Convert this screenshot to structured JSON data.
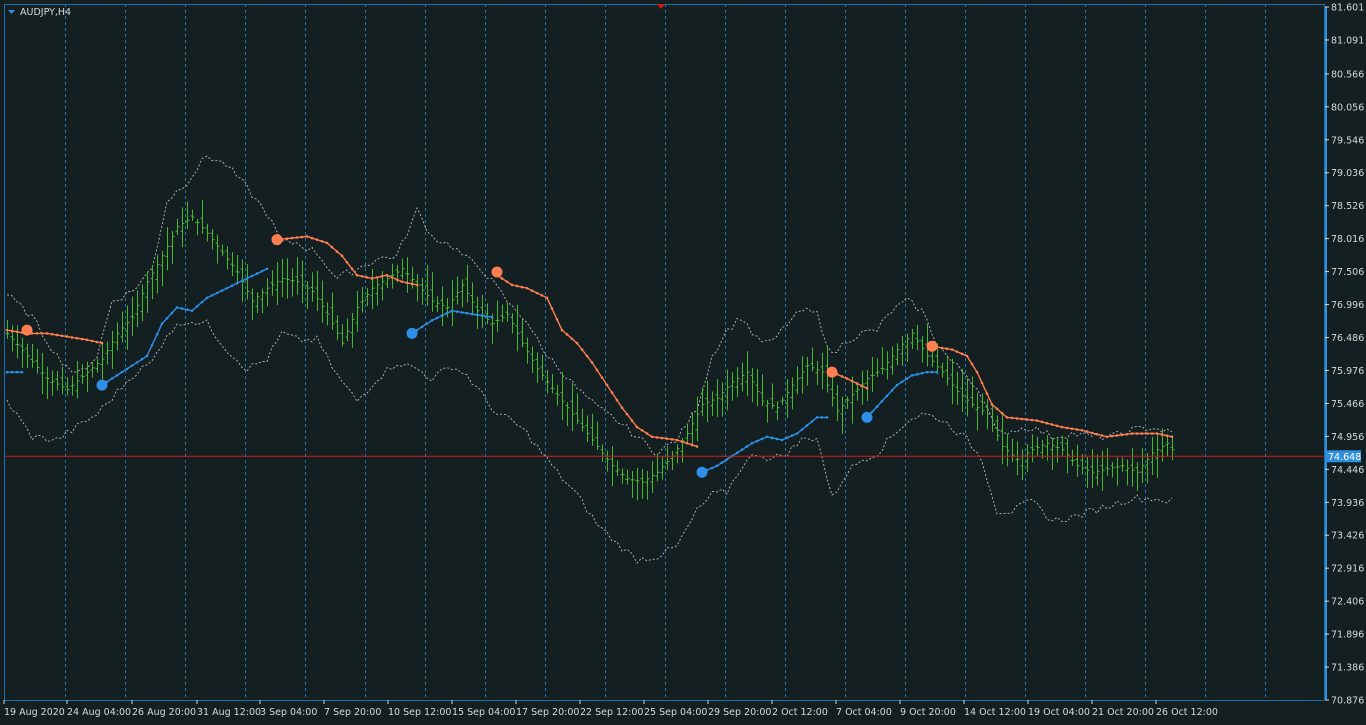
{
  "window": {
    "title": "AUDJPY,H4",
    "colors": {
      "background": "#131f20",
      "frame": "#1e6fae",
      "grid": "#2e8fdc",
      "bars": "#45b82c",
      "upper_band": "#ff7d4f",
      "lower_band": "#2e8fe8",
      "envelope": "#d8d8d8",
      "current_price_line": "#d81818",
      "price_tag": "#2e8fdc"
    }
  },
  "chart_data": {
    "type": "ohlc",
    "symbol": "AUDJPY",
    "timeframe": "H4",
    "y_axis": {
      "ticks": [
        "81.601",
        "81.091",
        "80.566",
        "80.056",
        "79.546",
        "79.036",
        "78.526",
        "78.016",
        "77.506",
        "76.996",
        "76.486",
        "75.976",
        "75.466",
        "74.956",
        "74.446",
        "73.936",
        "73.426",
        "72.916",
        "72.406",
        "71.896",
        "71.386",
        "70.876"
      ],
      "range": [
        70.876,
        81.601
      ]
    },
    "x_axis": {
      "labels": [
        "19 Aug 2020",
        "24 Aug 04:00",
        "26 Aug 20:00",
        "31 Aug 12:00",
        "3 Sep 04:00",
        "7 Sep 20:00",
        "10 Sep 12:00",
        "15 Sep 04:00",
        "17 Sep 20:00",
        "22 Sep 12:00",
        "25 Sep 04:00",
        "29 Sep 20:00",
        "2 Oct 12:00",
        "7 Oct 04:00",
        "9 Oct 20:00",
        "14 Oct 12:00",
        "19 Oct 04:00",
        "21 Oct 20:00",
        "26 Oct 12:00"
      ]
    },
    "current_price": "74.648",
    "price_path": [
      [
        0,
        76.55
      ],
      [
        4,
        76.2
      ],
      [
        8,
        75.85
      ],
      [
        12,
        75.68
      ],
      [
        16,
        75.95
      ],
      [
        19,
        76.15
      ],
      [
        22,
        76.55
      ],
      [
        25,
        76.8
      ],
      [
        28,
        77.35
      ],
      [
        31,
        77.75
      ],
      [
        34,
        78.2
      ],
      [
        37,
        78.35
      ],
      [
        40,
        78.1
      ],
      [
        43,
        77.8
      ],
      [
        46,
        77.5
      ],
      [
        49,
        77.05
      ],
      [
        52,
        77.25
      ],
      [
        55,
        77.4
      ],
      [
        58,
        77.35
      ],
      [
        61,
        77.2
      ],
      [
        64,
        76.85
      ],
      [
        67,
        76.4
      ],
      [
        70,
        76.95
      ],
      [
        73,
        77.25
      ],
      [
        76,
        77.4
      ],
      [
        79,
        77.55
      ],
      [
        82,
        77.3
      ],
      [
        85,
        77.05
      ],
      [
        88,
        76.95
      ],
      [
        91,
        77.3
      ],
      [
        94,
        76.9
      ],
      [
        97,
        76.7
      ],
      [
        100,
        76.85
      ],
      [
        103,
        76.4
      ],
      [
        106,
        76.0
      ],
      [
        109,
        75.7
      ],
      [
        112,
        75.4
      ],
      [
        115,
        75.1
      ],
      [
        118,
        74.8
      ],
      [
        121,
        74.5
      ],
      [
        124,
        74.3
      ],
      [
        127,
        74.25
      ],
      [
        130,
        74.4
      ],
      [
        133,
        74.65
      ],
      [
        136,
        75.0
      ],
      [
        139,
        75.45
      ],
      [
        142,
        75.55
      ],
      [
        145,
        75.8
      ],
      [
        148,
        75.95
      ],
      [
        151,
        75.5
      ],
      [
        154,
        75.4
      ],
      [
        157,
        75.75
      ],
      [
        160,
        76.05
      ],
      [
        163,
        75.95
      ],
      [
        166,
        75.35
      ],
      [
        169,
        75.6
      ],
      [
        172,
        75.85
      ],
      [
        175,
        76.0
      ],
      [
        178,
        76.3
      ],
      [
        181,
        76.55
      ],
      [
        184,
        76.2
      ],
      [
        187,
        75.95
      ],
      [
        190,
        75.65
      ],
      [
        193,
        75.45
      ],
      [
        196,
        75.3
      ],
      [
        199,
        74.8
      ],
      [
        202,
        74.6
      ],
      [
        205,
        74.75
      ],
      [
        208,
        74.85
      ],
      [
        211,
        74.75
      ],
      [
        214,
        74.5
      ],
      [
        217,
        74.4
      ],
      [
        220,
        74.45
      ],
      [
        223,
        74.5
      ],
      [
        226,
        74.4
      ],
      [
        229,
        74.7
      ],
      [
        232,
        74.85
      ],
      [
        233,
        74.75
      ]
    ],
    "upper_band": {
      "segments": [
        [
          [
            0,
            76.6
          ],
          [
            4,
            76.55
          ],
          [
            8,
            76.55
          ],
          [
            12,
            76.5
          ],
          [
            16,
            76.45
          ],
          [
            19,
            76.4
          ]
        ],
        [
          [
            54,
            78.0
          ],
          [
            60,
            78.05
          ],
          [
            64,
            77.95
          ],
          [
            67,
            77.75
          ],
          [
            70,
            77.45
          ],
          [
            73,
            77.4
          ],
          [
            76,
            77.45
          ],
          [
            79,
            77.35
          ],
          [
            82,
            77.3
          ]
        ],
        [
          [
            98,
            77.45
          ],
          [
            101,
            77.3
          ],
          [
            104,
            77.25
          ],
          [
            108,
            77.1
          ],
          [
            111,
            76.6
          ],
          [
            114,
            76.4
          ],
          [
            117,
            76.1
          ],
          [
            120,
            75.75
          ],
          [
            123,
            75.4
          ],
          [
            126,
            75.1
          ],
          [
            129,
            74.95
          ],
          [
            134,
            74.9
          ],
          [
            138,
            74.8
          ]
        ],
        [
          [
            165,
            75.95
          ],
          [
            168,
            75.85
          ],
          [
            172,
            75.7
          ]
        ],
        [
          [
            185,
            76.35
          ],
          [
            189,
            76.3
          ],
          [
            192,
            76.2
          ],
          [
            194,
            75.95
          ],
          [
            197,
            75.45
          ],
          [
            200,
            75.25
          ],
          [
            206,
            75.2
          ],
          [
            211,
            75.1
          ],
          [
            215,
            75.05
          ],
          [
            220,
            74.95
          ],
          [
            225,
            75.0
          ],
          [
            230,
            75.0
          ],
          [
            233,
            74.95
          ]
        ]
      ],
      "signal_dots": [
        [
          4,
          76.6
        ],
        [
          54,
          78.0
        ],
        [
          98,
          77.5
        ],
        [
          165,
          75.95
        ],
        [
          185,
          76.35
        ]
      ]
    },
    "lower_band": {
      "segments": [
        [
          [
            0,
            75.95
          ],
          [
            3,
            75.95
          ]
        ],
        [
          [
            19,
            75.75
          ],
          [
            22,
            75.9
          ],
          [
            25,
            76.05
          ],
          [
            28,
            76.2
          ],
          [
            31,
            76.7
          ],
          [
            34,
            76.95
          ],
          [
            37,
            76.9
          ],
          [
            40,
            77.1
          ],
          [
            44,
            77.25
          ],
          [
            48,
            77.4
          ],
          [
            52,
            77.55
          ]
        ],
        [
          [
            81,
            76.55
          ],
          [
            85,
            76.75
          ],
          [
            89,
            76.9
          ],
          [
            93,
            76.85
          ],
          [
            97,
            76.8
          ]
        ],
        [
          [
            139,
            74.4
          ],
          [
            142,
            74.5
          ],
          [
            146,
            74.7
          ],
          [
            149,
            74.85
          ],
          [
            152,
            74.95
          ],
          [
            155,
            74.9
          ],
          [
            158,
            75.0
          ],
          [
            162,
            75.25
          ],
          [
            164,
            75.25
          ]
        ],
        [
          [
            172,
            75.25
          ],
          [
            175,
            75.5
          ],
          [
            178,
            75.75
          ],
          [
            181,
            75.9
          ],
          [
            184,
            75.95
          ],
          [
            186,
            75.95
          ]
        ]
      ],
      "signal_dots": [
        [
          19,
          75.75
        ],
        [
          81,
          76.55
        ],
        [
          139,
          74.4
        ],
        [
          172,
          75.25
        ]
      ]
    },
    "envelope_upper": [
      [
        0,
        77.15
      ],
      [
        5,
        76.8
      ],
      [
        10,
        76.2
      ],
      [
        14,
        75.9
      ],
      [
        18,
        76.2
      ],
      [
        21,
        77.05
      ],
      [
        25,
        77.2
      ],
      [
        29,
        77.55
      ],
      [
        32,
        78.6
      ],
      [
        36,
        78.9
      ],
      [
        40,
        79.3
      ],
      [
        44,
        79.15
      ],
      [
        48,
        78.8
      ],
      [
        52,
        78.4
      ],
      [
        55,
        77.95
      ],
      [
        58,
        77.95
      ],
      [
        62,
        77.8
      ],
      [
        66,
        77.4
      ],
      [
        70,
        77.55
      ],
      [
        74,
        77.7
      ],
      [
        78,
        77.75
      ],
      [
        82,
        78.45
      ],
      [
        85,
        78.05
      ],
      [
        89,
        77.9
      ],
      [
        92,
        77.7
      ],
      [
        95,
        77.55
      ],
      [
        98,
        77.25
      ],
      [
        101,
        76.95
      ],
      [
        104,
        76.75
      ],
      [
        107,
        76.3
      ],
      [
        110,
        76.05
      ],
      [
        114,
        75.7
      ],
      [
        118,
        75.4
      ],
      [
        122,
        75.2
      ],
      [
        126,
        74.95
      ],
      [
        130,
        74.7
      ],
      [
        134,
        74.9
      ],
      [
        138,
        75.4
      ],
      [
        141,
        76.2
      ],
      [
        144,
        76.6
      ],
      [
        147,
        76.8
      ],
      [
        150,
        76.45
      ],
      [
        153,
        76.4
      ],
      [
        156,
        76.7
      ],
      [
        159,
        76.9
      ],
      [
        162,
        76.85
      ],
      [
        165,
        76.2
      ],
      [
        168,
        76.45
      ],
      [
        171,
        76.55
      ],
      [
        174,
        76.6
      ],
      [
        177,
        76.9
      ],
      [
        180,
        77.05
      ],
      [
        183,
        76.9
      ],
      [
        186,
        76.4
      ],
      [
        189,
        76.1
      ],
      [
        192,
        75.9
      ],
      [
        195,
        75.6
      ],
      [
        198,
        75.0
      ],
      [
        201,
        75.05
      ],
      [
        205,
        75.1
      ],
      [
        209,
        74.95
      ],
      [
        213,
        75.0
      ],
      [
        217,
        74.95
      ],
      [
        221,
        74.95
      ],
      [
        225,
        75.05
      ],
      [
        229,
        75.1
      ],
      [
        233,
        75.0
      ]
    ],
    "envelope_lower": [
      [
        0,
        75.5
      ],
      [
        5,
        74.95
      ],
      [
        10,
        74.9
      ],
      [
        14,
        75.1
      ],
      [
        18,
        75.3
      ],
      [
        21,
        75.55
      ],
      [
        25,
        75.9
      ],
      [
        29,
        76.1
      ],
      [
        32,
        76.55
      ],
      [
        36,
        76.75
      ],
      [
        40,
        76.7
      ],
      [
        44,
        76.3
      ],
      [
        48,
        76.0
      ],
      [
        52,
        76.15
      ],
      [
        55,
        76.55
      ],
      [
        58,
        76.45
      ],
      [
        62,
        76.45
      ],
      [
        66,
        75.9
      ],
      [
        70,
        75.5
      ],
      [
        74,
        75.85
      ],
      [
        78,
        76.1
      ],
      [
        82,
        76.0
      ],
      [
        85,
        75.85
      ],
      [
        89,
        76.05
      ],
      [
        92,
        75.9
      ],
      [
        95,
        75.6
      ],
      [
        98,
        75.3
      ],
      [
        101,
        75.2
      ],
      [
        104,
        75.0
      ],
      [
        107,
        74.7
      ],
      [
        110,
        74.4
      ],
      [
        114,
        74.05
      ],
      [
        118,
        73.6
      ],
      [
        122,
        73.3
      ],
      [
        126,
        73.05
      ],
      [
        130,
        73.1
      ],
      [
        134,
        73.25
      ],
      [
        138,
        73.8
      ],
      [
        141,
        74.05
      ],
      [
        144,
        74.1
      ],
      [
        147,
        74.5
      ],
      [
        150,
        74.7
      ],
      [
        153,
        74.6
      ],
      [
        156,
        74.7
      ],
      [
        159,
        74.9
      ],
      [
        162,
        74.95
      ],
      [
        165,
        74.0
      ],
      [
        168,
        74.4
      ],
      [
        171,
        74.6
      ],
      [
        174,
        74.7
      ],
      [
        177,
        74.95
      ],
      [
        180,
        75.2
      ],
      [
        183,
        75.3
      ],
      [
        186,
        75.25
      ],
      [
        189,
        75.1
      ],
      [
        192,
        74.9
      ],
      [
        195,
        74.6
      ],
      [
        198,
        73.8
      ],
      [
        201,
        73.8
      ],
      [
        205,
        73.95
      ],
      [
        209,
        73.65
      ],
      [
        213,
        73.7
      ],
      [
        217,
        73.8
      ],
      [
        221,
        73.9
      ],
      [
        225,
        74.0
      ],
      [
        229,
        74.0
      ],
      [
        233,
        73.95
      ]
    ]
  }
}
